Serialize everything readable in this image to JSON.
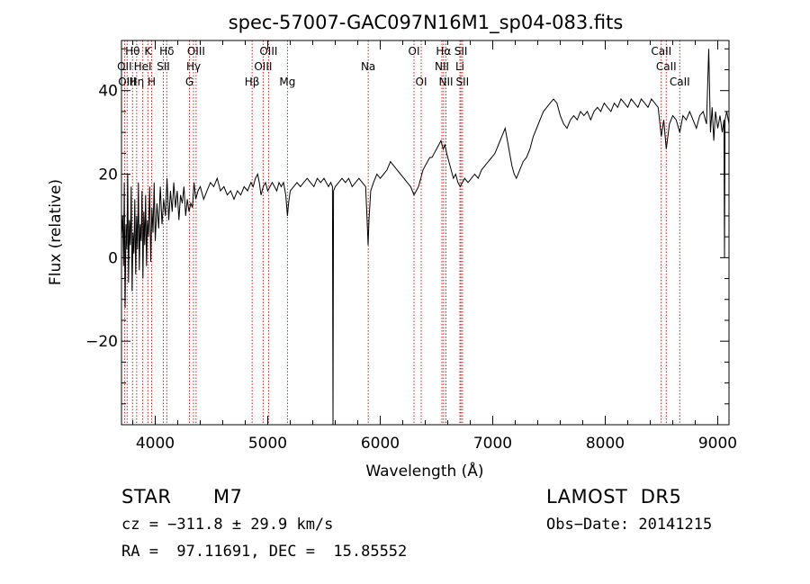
{
  "chart_data": {
    "type": "line",
    "title": "spec-57007-GAC097N16M1_sp04-083.fits",
    "xlabel": "Wavelength (Å)",
    "ylabel": "Flux (relative)",
    "xlim": [
      3700,
      9100
    ],
    "ylim": [
      -40,
      52
    ],
    "xticks": [
      4000,
      5000,
      6000,
      7000,
      8000,
      9000
    ],
    "xtick_labels": [
      "4000",
      "5000",
      "6000",
      "7000",
      "8000",
      "9000"
    ],
    "yticks": [
      -20,
      0,
      20,
      40
    ],
    "ytick_labels": [
      "−20",
      "0",
      "20",
      "40"
    ],
    "grid": false,
    "line_color": "#000000",
    "marker_color": "#cc0000",
    "spectral_lines": [
      {
        "label": "Hθ",
        "x": 3798,
        "row": 0
      },
      {
        "label": "K",
        "x": 3934,
        "row": 0
      },
      {
        "label": "Hδ",
        "x": 4102,
        "row": 0
      },
      {
        "label": "OIII",
        "x": 4363,
        "row": 0
      },
      {
        "label": "OIII",
        "x": 5007,
        "row": 0
      },
      {
        "label": "OI",
        "x": 6300,
        "row": 0
      },
      {
        "label": "Hα",
        "x": 6563,
        "row": 0
      },
      {
        "label": "SII",
        "x": 6717,
        "row": 0
      },
      {
        "label": "CaII",
        "x": 8498,
        "row": 0
      },
      {
        "label": "OII",
        "x": 3727,
        "row": 1
      },
      {
        "label": "HeI",
        "x": 3889,
        "row": 1
      },
      {
        "label": "SII",
        "x": 4072,
        "row": 1
      },
      {
        "label": "Hγ",
        "x": 4340,
        "row": 1
      },
      {
        "label": "OIII",
        "x": 4959,
        "row": 1
      },
      {
        "label": "Na",
        "x": 5893,
        "row": 1
      },
      {
        "label": "NII",
        "x": 6548,
        "row": 1
      },
      {
        "label": "Li",
        "x": 6708,
        "row": 1
      },
      {
        "label": "CaII",
        "x": 8542,
        "row": 1
      },
      {
        "label": "OIII",
        "x": 3750,
        "row": 2
      },
      {
        "label": "Hη",
        "x": 3835,
        "row": 2
      },
      {
        "label": "H",
        "x": 3968,
        "row": 2
      },
      {
        "label": "G",
        "x": 4304,
        "row": 2
      },
      {
        "label": "Hβ",
        "x": 4861,
        "row": 2
      },
      {
        "label": "Mg",
        "x": 5175,
        "row": 2
      },
      {
        "label": "OI",
        "x": 6364,
        "row": 2
      },
      {
        "label": "NII",
        "x": 6584,
        "row": 2
      },
      {
        "label": "SII",
        "x": 6731,
        "row": 2
      },
      {
        "label": "CaII",
        "x": 8662,
        "row": 2
      }
    ],
    "series": [
      {
        "points": [
          [
            3700,
            5
          ],
          [
            3710,
            10
          ],
          [
            3718,
            -2
          ],
          [
            3725,
            18
          ],
          [
            3732,
            -12
          ],
          [
            3740,
            8
          ],
          [
            3748,
            2
          ],
          [
            3755,
            20
          ],
          [
            3762,
            -6
          ],
          [
            3770,
            9
          ],
          [
            3778,
            3
          ],
          [
            3786,
            17
          ],
          [
            3794,
            -8
          ],
          [
            3802,
            6
          ],
          [
            3810,
            1
          ],
          [
            3818,
            14
          ],
          [
            3826,
            -4
          ],
          [
            3834,
            10
          ],
          [
            3842,
            2
          ],
          [
            3850,
            18
          ],
          [
            3858,
            -3
          ],
          [
            3866,
            8
          ],
          [
            3874,
            4
          ],
          [
            3882,
            16
          ],
          [
            3890,
            -5
          ],
          [
            3898,
            11
          ],
          [
            3906,
            3
          ],
          [
            3914,
            15
          ],
          [
            3922,
            -2
          ],
          [
            3930,
            9
          ],
          [
            3940,
            5
          ],
          [
            3950,
            17
          ],
          [
            3960,
            -1
          ],
          [
            3970,
            12
          ],
          [
            3980,
            6
          ],
          [
            3990,
            18
          ],
          [
            4000,
            4
          ],
          [
            4015,
            13
          ],
          [
            4030,
            7
          ],
          [
            4045,
            17
          ],
          [
            4060,
            8
          ],
          [
            4075,
            14
          ],
          [
            4090,
            10
          ],
          [
            4105,
            19
          ],
          [
            4120,
            9
          ],
          [
            4135,
            16
          ],
          [
            4150,
            11
          ],
          [
            4165,
            18
          ],
          [
            4180,
            12
          ],
          [
            4195,
            16
          ],
          [
            4210,
            9
          ],
          [
            4225,
            15
          ],
          [
            4240,
            13
          ],
          [
            4255,
            17
          ],
          [
            4270,
            10
          ],
          [
            4285,
            14
          ],
          [
            4300,
            11
          ],
          [
            4315,
            13
          ],
          [
            4330,
            12
          ],
          [
            4345,
            18
          ],
          [
            4360,
            14
          ],
          [
            4380,
            16
          ],
          [
            4400,
            17
          ],
          [
            4430,
            14
          ],
          [
            4460,
            16
          ],
          [
            4490,
            18
          ],
          [
            4520,
            17
          ],
          [
            4550,
            19
          ],
          [
            4580,
            16
          ],
          [
            4610,
            17
          ],
          [
            4640,
            15
          ],
          [
            4670,
            16
          ],
          [
            4700,
            14
          ],
          [
            4730,
            16
          ],
          [
            4760,
            15
          ],
          [
            4790,
            17
          ],
          [
            4820,
            16
          ],
          [
            4850,
            18
          ],
          [
            4870,
            17
          ],
          [
            4890,
            19
          ],
          [
            4910,
            20
          ],
          [
            4925,
            18
          ],
          [
            4940,
            15
          ],
          [
            4960,
            17
          ],
          [
            4980,
            18
          ],
          [
            5000,
            16
          ],
          [
            5020,
            17
          ],
          [
            5040,
            18
          ],
          [
            5060,
            17
          ],
          [
            5080,
            16
          ],
          [
            5100,
            18
          ],
          [
            5120,
            17
          ],
          [
            5140,
            18
          ],
          [
            5160,
            15
          ],
          [
            5175,
            10
          ],
          [
            5185,
            13
          ],
          [
            5200,
            16
          ],
          [
            5230,
            17
          ],
          [
            5260,
            18
          ],
          [
            5290,
            17
          ],
          [
            5320,
            18
          ],
          [
            5350,
            19
          ],
          [
            5380,
            18
          ],
          [
            5410,
            17
          ],
          [
            5440,
            19
          ],
          [
            5470,
            18
          ],
          [
            5500,
            19
          ],
          [
            5520,
            18
          ],
          [
            5540,
            17
          ],
          [
            5560,
            18
          ],
          [
            5575,
            17
          ],
          [
            5580,
            -40
          ],
          [
            5585,
            16
          ],
          [
            5600,
            17
          ],
          [
            5630,
            18
          ],
          [
            5660,
            19
          ],
          [
            5690,
            18
          ],
          [
            5720,
            19
          ],
          [
            5750,
            17
          ],
          [
            5780,
            18
          ],
          [
            5810,
            19
          ],
          [
            5840,
            18
          ],
          [
            5870,
            17
          ],
          [
            5885,
            8
          ],
          [
            5892,
            3
          ],
          [
            5900,
            9
          ],
          [
            5915,
            16
          ],
          [
            5940,
            18
          ],
          [
            5970,
            20
          ],
          [
            6000,
            19
          ],
          [
            6030,
            20
          ],
          [
            6060,
            21
          ],
          [
            6090,
            23
          ],
          [
            6120,
            22
          ],
          [
            6150,
            21
          ],
          [
            6180,
            20
          ],
          [
            6210,
            19
          ],
          [
            6240,
            18
          ],
          [
            6270,
            17
          ],
          [
            6300,
            15
          ],
          [
            6320,
            16
          ],
          [
            6340,
            17
          ],
          [
            6360,
            19
          ],
          [
            6380,
            21
          ],
          [
            6400,
            22
          ],
          [
            6420,
            23
          ],
          [
            6440,
            24
          ],
          [
            6460,
            24
          ],
          [
            6480,
            25
          ],
          [
            6500,
            26
          ],
          [
            6520,
            27
          ],
          [
            6540,
            28
          ],
          [
            6560,
            26
          ],
          [
            6575,
            27
          ],
          [
            6590,
            25
          ],
          [
            6610,
            23
          ],
          [
            6630,
            21
          ],
          [
            6650,
            19
          ],
          [
            6670,
            20
          ],
          [
            6690,
            18
          ],
          [
            6710,
            17
          ],
          [
            6730,
            18
          ],
          [
            6750,
            19
          ],
          [
            6780,
            18
          ],
          [
            6810,
            19
          ],
          [
            6840,
            20
          ],
          [
            6870,
            19
          ],
          [
            6900,
            21
          ],
          [
            6930,
            22
          ],
          [
            6960,
            23
          ],
          [
            6990,
            24
          ],
          [
            7020,
            25
          ],
          [
            7050,
            27
          ],
          [
            7080,
            29
          ],
          [
            7110,
            31
          ],
          [
            7130,
            28
          ],
          [
            7150,
            25
          ],
          [
            7170,
            22
          ],
          [
            7190,
            20
          ],
          [
            7210,
            19
          ],
          [
            7240,
            21
          ],
          [
            7270,
            23
          ],
          [
            7300,
            24
          ],
          [
            7330,
            26
          ],
          [
            7360,
            29
          ],
          [
            7390,
            31
          ],
          [
            7420,
            33
          ],
          [
            7450,
            35
          ],
          [
            7480,
            36
          ],
          [
            7510,
            37
          ],
          [
            7540,
            38
          ],
          [
            7570,
            37
          ],
          [
            7600,
            34
          ],
          [
            7630,
            32
          ],
          [
            7660,
            31
          ],
          [
            7690,
            33
          ],
          [
            7720,
            34
          ],
          [
            7750,
            33
          ],
          [
            7780,
            35
          ],
          [
            7810,
            34
          ],
          [
            7840,
            35
          ],
          [
            7870,
            33
          ],
          [
            7900,
            35
          ],
          [
            7930,
            36
          ],
          [
            7960,
            35
          ],
          [
            7990,
            37
          ],
          [
            8020,
            36
          ],
          [
            8050,
            35
          ],
          [
            8080,
            37
          ],
          [
            8110,
            36
          ],
          [
            8140,
            38
          ],
          [
            8170,
            37
          ],
          [
            8200,
            36
          ],
          [
            8230,
            38
          ],
          [
            8260,
            37
          ],
          [
            8290,
            36
          ],
          [
            8320,
            38
          ],
          [
            8350,
            37
          ],
          [
            8380,
            36
          ],
          [
            8410,
            38
          ],
          [
            8440,
            37
          ],
          [
            8470,
            36
          ],
          [
            8498,
            29
          ],
          [
            8520,
            33
          ],
          [
            8542,
            26
          ],
          [
            8570,
            32
          ],
          [
            8600,
            34
          ],
          [
            8630,
            33
          ],
          [
            8662,
            30
          ],
          [
            8690,
            34
          ],
          [
            8720,
            33
          ],
          [
            8750,
            35
          ],
          [
            8780,
            33
          ],
          [
            8810,
            31
          ],
          [
            8840,
            34
          ],
          [
            8870,
            35
          ],
          [
            8900,
            32
          ],
          [
            8920,
            50
          ],
          [
            8935,
            30
          ],
          [
            8950,
            36
          ],
          [
            8965,
            28
          ],
          [
            8980,
            35
          ],
          [
            9000,
            31
          ],
          [
            9020,
            34
          ],
          [
            9040,
            30
          ],
          [
            9055,
            33
          ],
          [
            9060,
            0
          ],
          [
            9065,
            33
          ],
          [
            9080,
            35
          ],
          [
            9100,
            32
          ]
        ]
      }
    ]
  },
  "footer": {
    "star_label": "STAR",
    "class_label": "M7",
    "survey_label": "LAMOST  DR5",
    "cz_text": "cz = −311.8 ± 29.9 km/s",
    "obs_date_text": "Obs−Date: 20141215",
    "radec_text": "RA =  97.11691, DEC =  15.85552"
  }
}
